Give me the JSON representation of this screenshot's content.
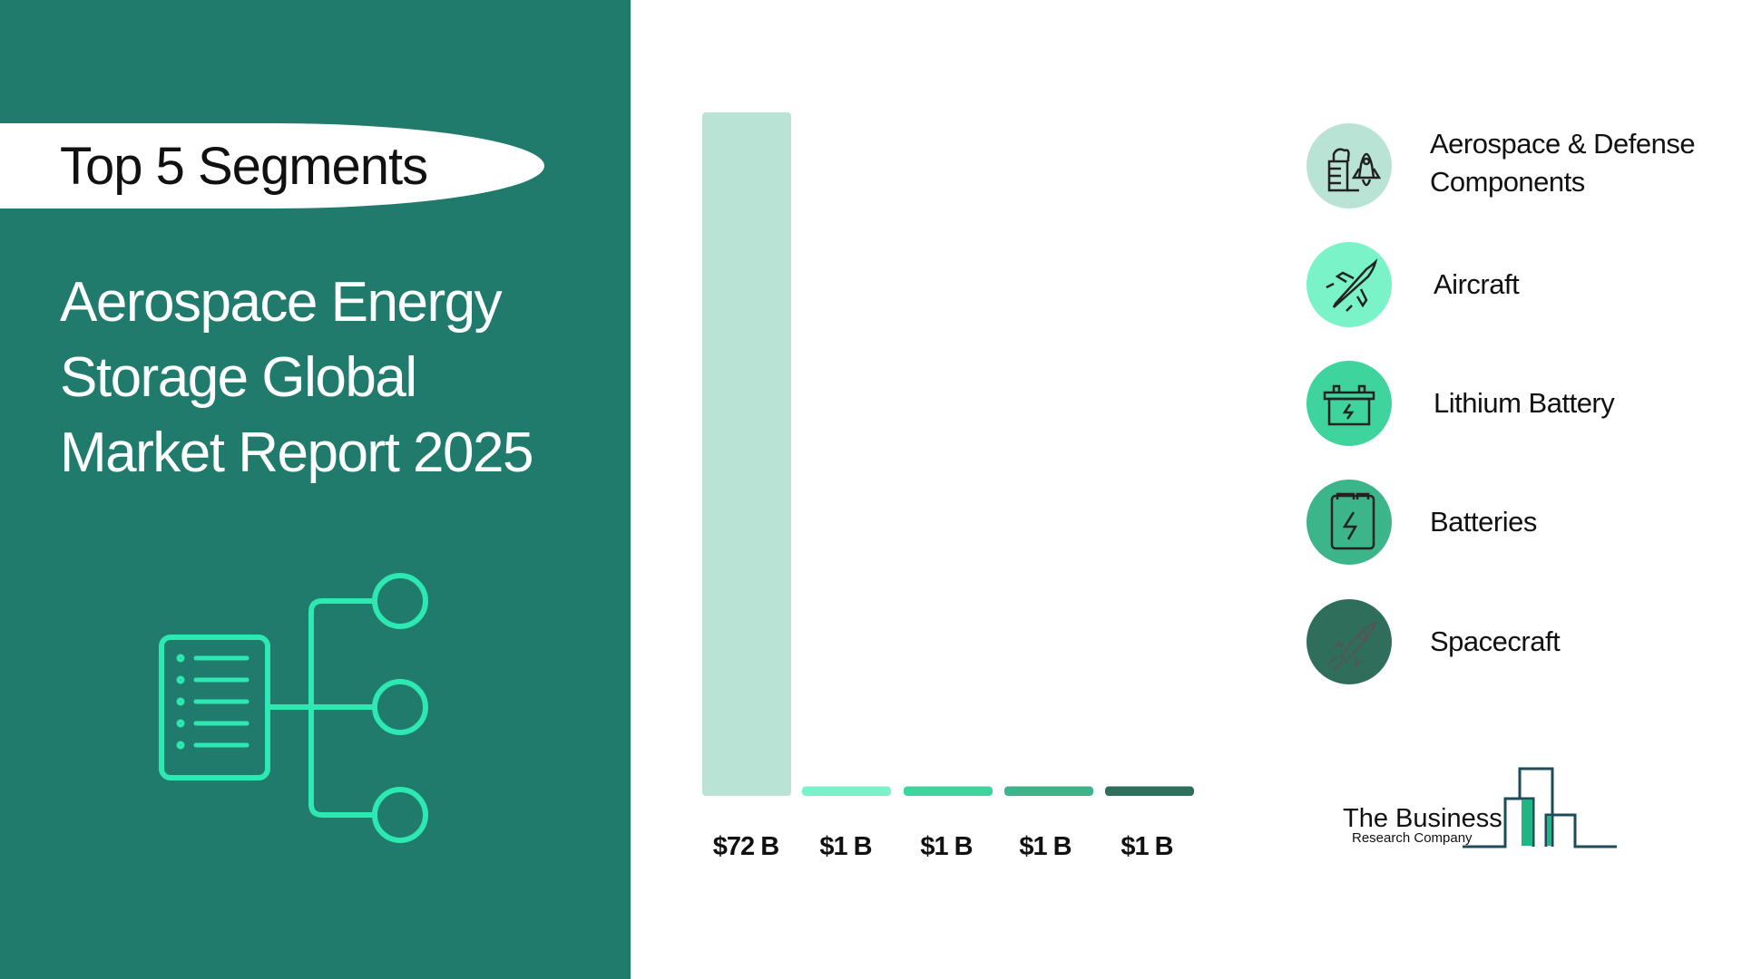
{
  "header": {
    "badge": "Top 5 Segments",
    "title_lines": [
      "Aerospace Energy",
      "Storage Global",
      "Market Report 2025"
    ]
  },
  "colors": {
    "panel": "#207b6c",
    "accent": "#2de8b0"
  },
  "chart_data": {
    "type": "bar",
    "categories": [
      "Aerospace & Defense Components",
      "Aircraft",
      "Lithium Battery",
      "Batteries",
      "Spacecraft"
    ],
    "values": [
      72,
      1,
      1,
      1,
      1
    ],
    "labels": [
      "$72 B",
      "$1 B",
      "$1 B",
      "$1 B",
      "$1 B"
    ],
    "unit": "$ B",
    "colors": [
      "#b9e3d4",
      "#7af3c8",
      "#3fd49d",
      "#3db58a",
      "#2e6e5a"
    ],
    "ylim": [
      0,
      72
    ]
  },
  "legend": [
    {
      "label": "Aerospace & Defense Components",
      "lines": [
        "Aerospace & Defense",
        "Components"
      ],
      "icon": "factory-rocket-icon"
    },
    {
      "label": "Aircraft",
      "lines": [
        "Aircraft"
      ],
      "icon": "fighter-jet-icon"
    },
    {
      "label": "Lithium Battery",
      "lines": [
        "Lithium Battery"
      ],
      "icon": "car-battery-icon"
    },
    {
      "label": "Batteries",
      "lines": [
        "Batteries"
      ],
      "icon": "battery-bolt-icon"
    },
    {
      "label": "Spacecraft",
      "lines": [
        "Spacecraft"
      ],
      "icon": "rocket-icon"
    }
  ],
  "logo": {
    "line1": "The Business",
    "line2": "Research Company"
  }
}
